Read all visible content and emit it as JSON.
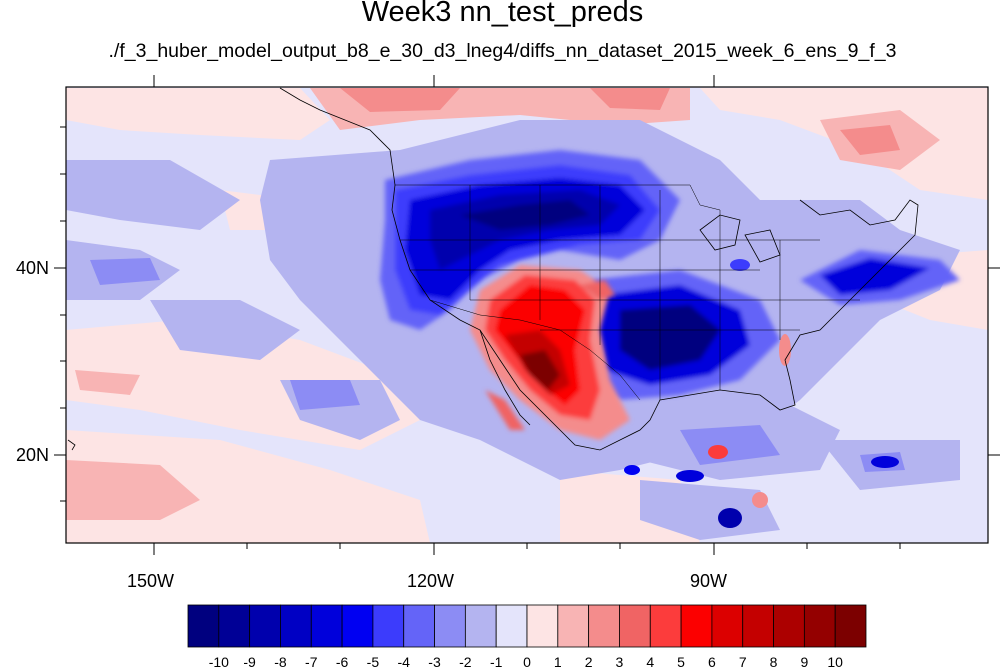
{
  "title": "Week3 nn_test_preds",
  "subtitle": "./f_3_huber_model_output_b8_e_30_d3_lneg4/diffs_nn_dataset_2015_week_6_ens_9_f_3",
  "lon_labels": [
    "150W",
    "120W",
    "90W"
  ],
  "lat_labels": [
    "40N",
    "20N"
  ],
  "colorbar": {
    "labels": [
      "-10",
      "-9",
      "-8",
      "-7",
      "-6",
      "-5",
      "-4",
      "-3",
      "-2",
      "-1",
      "0",
      "1",
      "2",
      "3",
      "4",
      "5",
      "6",
      "7",
      "8",
      "9",
      "10"
    ],
    "colors": [
      "#00007f",
      "#000096",
      "#0000ad",
      "#0000c4",
      "#0000db",
      "#0000f2",
      "#3c3cfc",
      "#6464f8",
      "#8c8cf4",
      "#b4b4f0",
      "#e4e4fb",
      "#fde4e4",
      "#f8b4b4",
      "#f48c8c",
      "#f06464",
      "#fc3c3c",
      "#fc0000",
      "#dc0000",
      "#c40000",
      "#ac0000",
      "#940000",
      "#7c0000"
    ]
  }
}
